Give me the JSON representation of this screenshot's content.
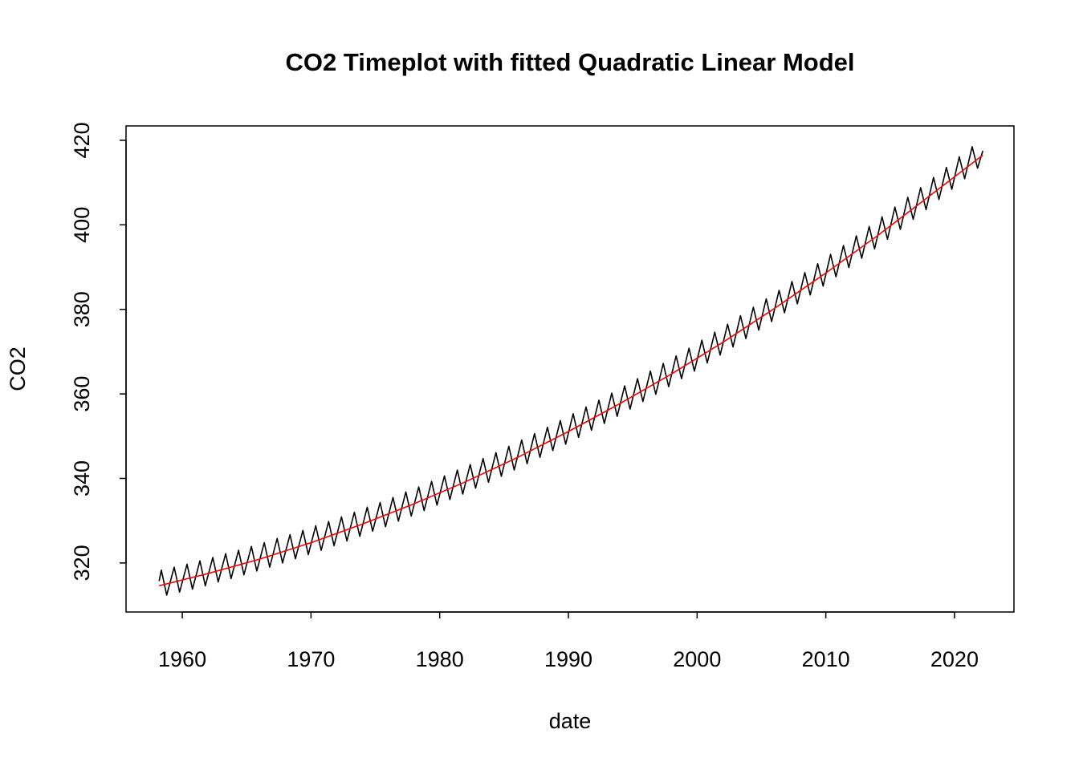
{
  "chart_data": {
    "type": "line",
    "title": "CO2 Timeplot with fitted Quadratic Linear Model",
    "xlabel": "date",
    "ylabel": "CO2",
    "xlim": [
      1955.63,
      2024.62
    ],
    "ylim": [
      308.4,
      423.4
    ],
    "xticks": [
      1960,
      1970,
      1980,
      1990,
      2000,
      2010,
      2020
    ],
    "yticks": [
      320,
      340,
      360,
      380,
      400,
      420
    ],
    "series": [
      {
        "color": "#000000",
        "x": [
          1958.2,
          1958.37,
          1958.79,
          1959.37,
          1959.79,
          1960.37,
          1960.79,
          1961.37,
          1961.79,
          1962.37,
          1962.79,
          1963.37,
          1963.79,
          1964.37,
          1964.79,
          1965.37,
          1965.79,
          1966.37,
          1966.79,
          1967.37,
          1967.79,
          1968.37,
          1968.79,
          1969.37,
          1969.79,
          1970.37,
          1970.79,
          1971.37,
          1971.79,
          1972.37,
          1972.79,
          1973.37,
          1973.79,
          1974.37,
          1974.79,
          1975.37,
          1975.79,
          1976.37,
          1976.79,
          1977.37,
          1977.79,
          1978.37,
          1978.79,
          1979.37,
          1979.79,
          1980.37,
          1980.79,
          1981.37,
          1981.79,
          1982.37,
          1982.79,
          1983.37,
          1983.79,
          1984.37,
          1984.79,
          1985.37,
          1985.79,
          1986.37,
          1986.79,
          1987.37,
          1987.79,
          1988.37,
          1988.79,
          1989.37,
          1989.79,
          1990.37,
          1990.79,
          1991.37,
          1991.79,
          1992.37,
          1992.79,
          1993.37,
          1993.79,
          1994.37,
          1994.79,
          1995.37,
          1995.79,
          1996.37,
          1996.79,
          1997.37,
          1997.79,
          1998.37,
          1998.79,
          1999.37,
          1999.79,
          2000.37,
          2000.79,
          2001.37,
          2001.79,
          2002.37,
          2002.79,
          2003.37,
          2003.79,
          2004.37,
          2004.79,
          2005.37,
          2005.79,
          2006.37,
          2006.79,
          2007.37,
          2007.79,
          2008.37,
          2008.79,
          2009.37,
          2009.79,
          2010.37,
          2010.79,
          2011.37,
          2011.79,
          2012.37,
          2012.79,
          2013.37,
          2013.79,
          2014.37,
          2014.79,
          2015.37,
          2015.79,
          2016.37,
          2016.79,
          2017.37,
          2017.79,
          2018.37,
          2018.79,
          2019.37,
          2019.79,
          2020.37,
          2020.79,
          2021.37,
          2021.79,
          2022.2
        ],
        "values": [
          315.7,
          318.3,
          312.4,
          319.0,
          313.1,
          319.7,
          313.8,
          320.5,
          314.6,
          321.3,
          315.5,
          322.2,
          316.3,
          323.0,
          317.2,
          323.9,
          318.1,
          324.8,
          319.0,
          325.8,
          320.0,
          326.7,
          321.0,
          327.7,
          322.0,
          328.8,
          323.0,
          329.8,
          324.1,
          330.9,
          325.2,
          332.0,
          326.3,
          333.2,
          327.5,
          334.3,
          328.6,
          335.5,
          329.9,
          336.8,
          331.1,
          338.0,
          332.4,
          339.3,
          333.7,
          340.6,
          335.0,
          342.0,
          336.3,
          343.3,
          337.7,
          344.7,
          339.1,
          346.1,
          340.5,
          347.6,
          342.0,
          349.1,
          343.5,
          350.6,
          345.0,
          352.1,
          346.6,
          353.7,
          348.1,
          355.3,
          349.7,
          356.9,
          351.4,
          358.5,
          353.0,
          360.2,
          354.7,
          361.9,
          356.4,
          363.6,
          358.2,
          365.4,
          359.9,
          367.2,
          361.7,
          369.0,
          363.6,
          370.8,
          365.4,
          372.7,
          367.3,
          374.6,
          369.2,
          376.5,
          371.1,
          378.5,
          373.1,
          380.5,
          375.1,
          382.5,
          377.1,
          384.5,
          379.2,
          386.6,
          381.3,
          388.7,
          383.4,
          390.8,
          385.5,
          393.0,
          387.7,
          395.1,
          389.9,
          397.4,
          392.1,
          399.6,
          394.3,
          401.9,
          396.6,
          404.2,
          398.9,
          406.5,
          401.3,
          408.8,
          403.6,
          411.2,
          406.0,
          413.6,
          408.4,
          416.1,
          410.9,
          418.5,
          413.4,
          417.5
        ]
      },
      {
        "color": "#ff0000",
        "x": [
          1958.2,
          1962,
          1966,
          1970,
          1974,
          1978,
          1982,
          1986,
          1990,
          1994,
          1998,
          2002,
          2006,
          2010,
          2014,
          2018,
          2022.2
        ],
        "values": [
          314.6,
          317.5,
          320.9,
          324.8,
          329.2,
          334.0,
          339.2,
          344.9,
          351.1,
          357.7,
          364.7,
          372.2,
          380.2,
          388.6,
          397.4,
          406.7,
          416.5
        ]
      }
    ]
  }
}
